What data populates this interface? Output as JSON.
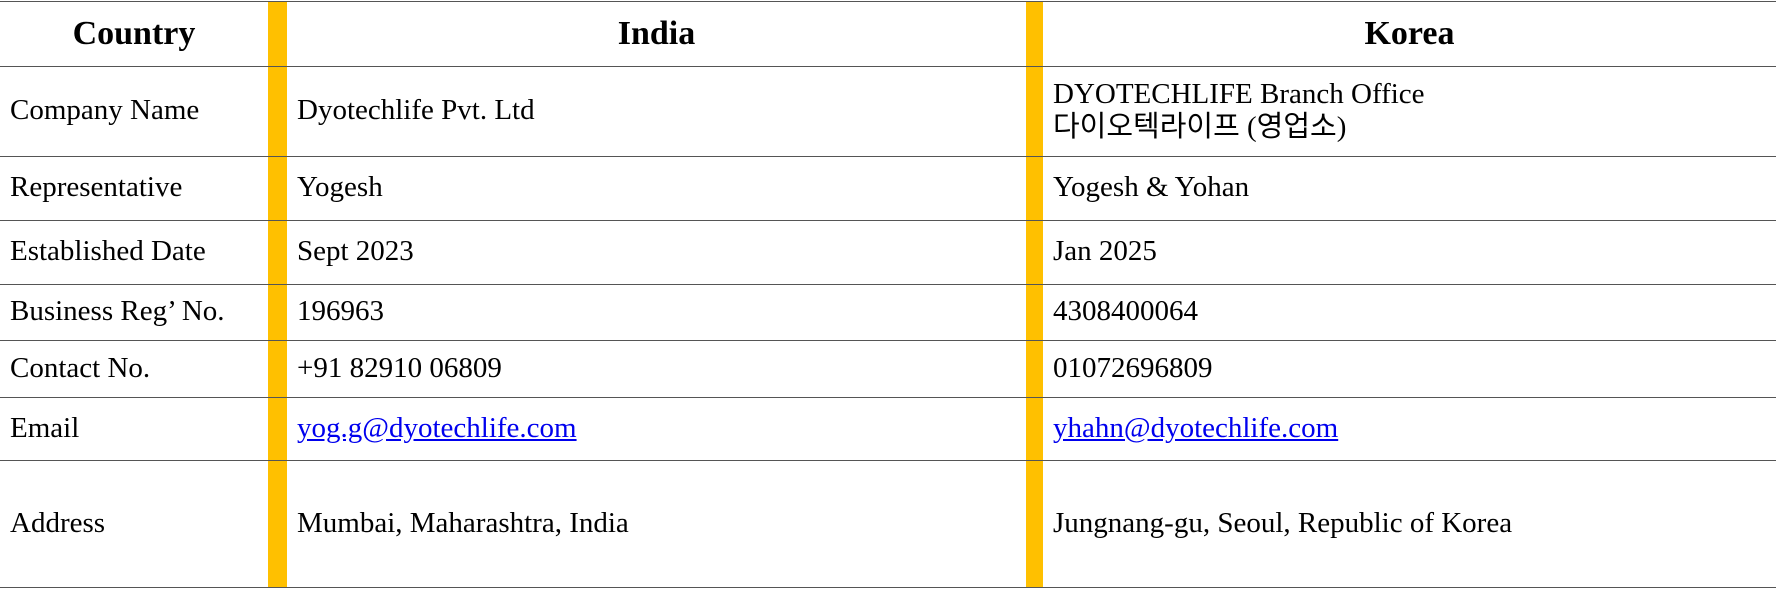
{
  "table": {
    "header": [
      "Country",
      "India",
      "Korea"
    ],
    "rows": [
      [
        [
          "Company Name"
        ],
        [
          "Dyotechlife Pvt. Ltd"
        ],
        [
          "DYOTECHLIFE Branch Office",
          "다이오텍라이프 (영업소)"
        ]
      ],
      [
        [
          "Representative"
        ],
        [
          "Yogesh"
        ],
        [
          "Yogesh & Yohan"
        ]
      ],
      [
        [
          "Established Date"
        ],
        [
          "Sept 2023"
        ],
        [
          "Jan 2025"
        ]
      ],
      [
        [
          "Business Reg’ No."
        ],
        [
          "196963"
        ],
        [
          "4308400064"
        ]
      ],
      [
        [
          "Contact No."
        ],
        [
          "+91 82910 06809"
        ],
        [
          "01072696809"
        ]
      ],
      [
        [
          "Email"
        ],
        [
          "yog.g@dyotechlife.com"
        ],
        [
          "yhahn@dyotechlife.com"
        ]
      ],
      [
        [
          "Address"
        ],
        [
          "Mumbai, Maharashtra, India"
        ],
        [
          "Jungnang-gu, Seoul, Republic of Korea"
        ]
      ]
    ]
  }
}
